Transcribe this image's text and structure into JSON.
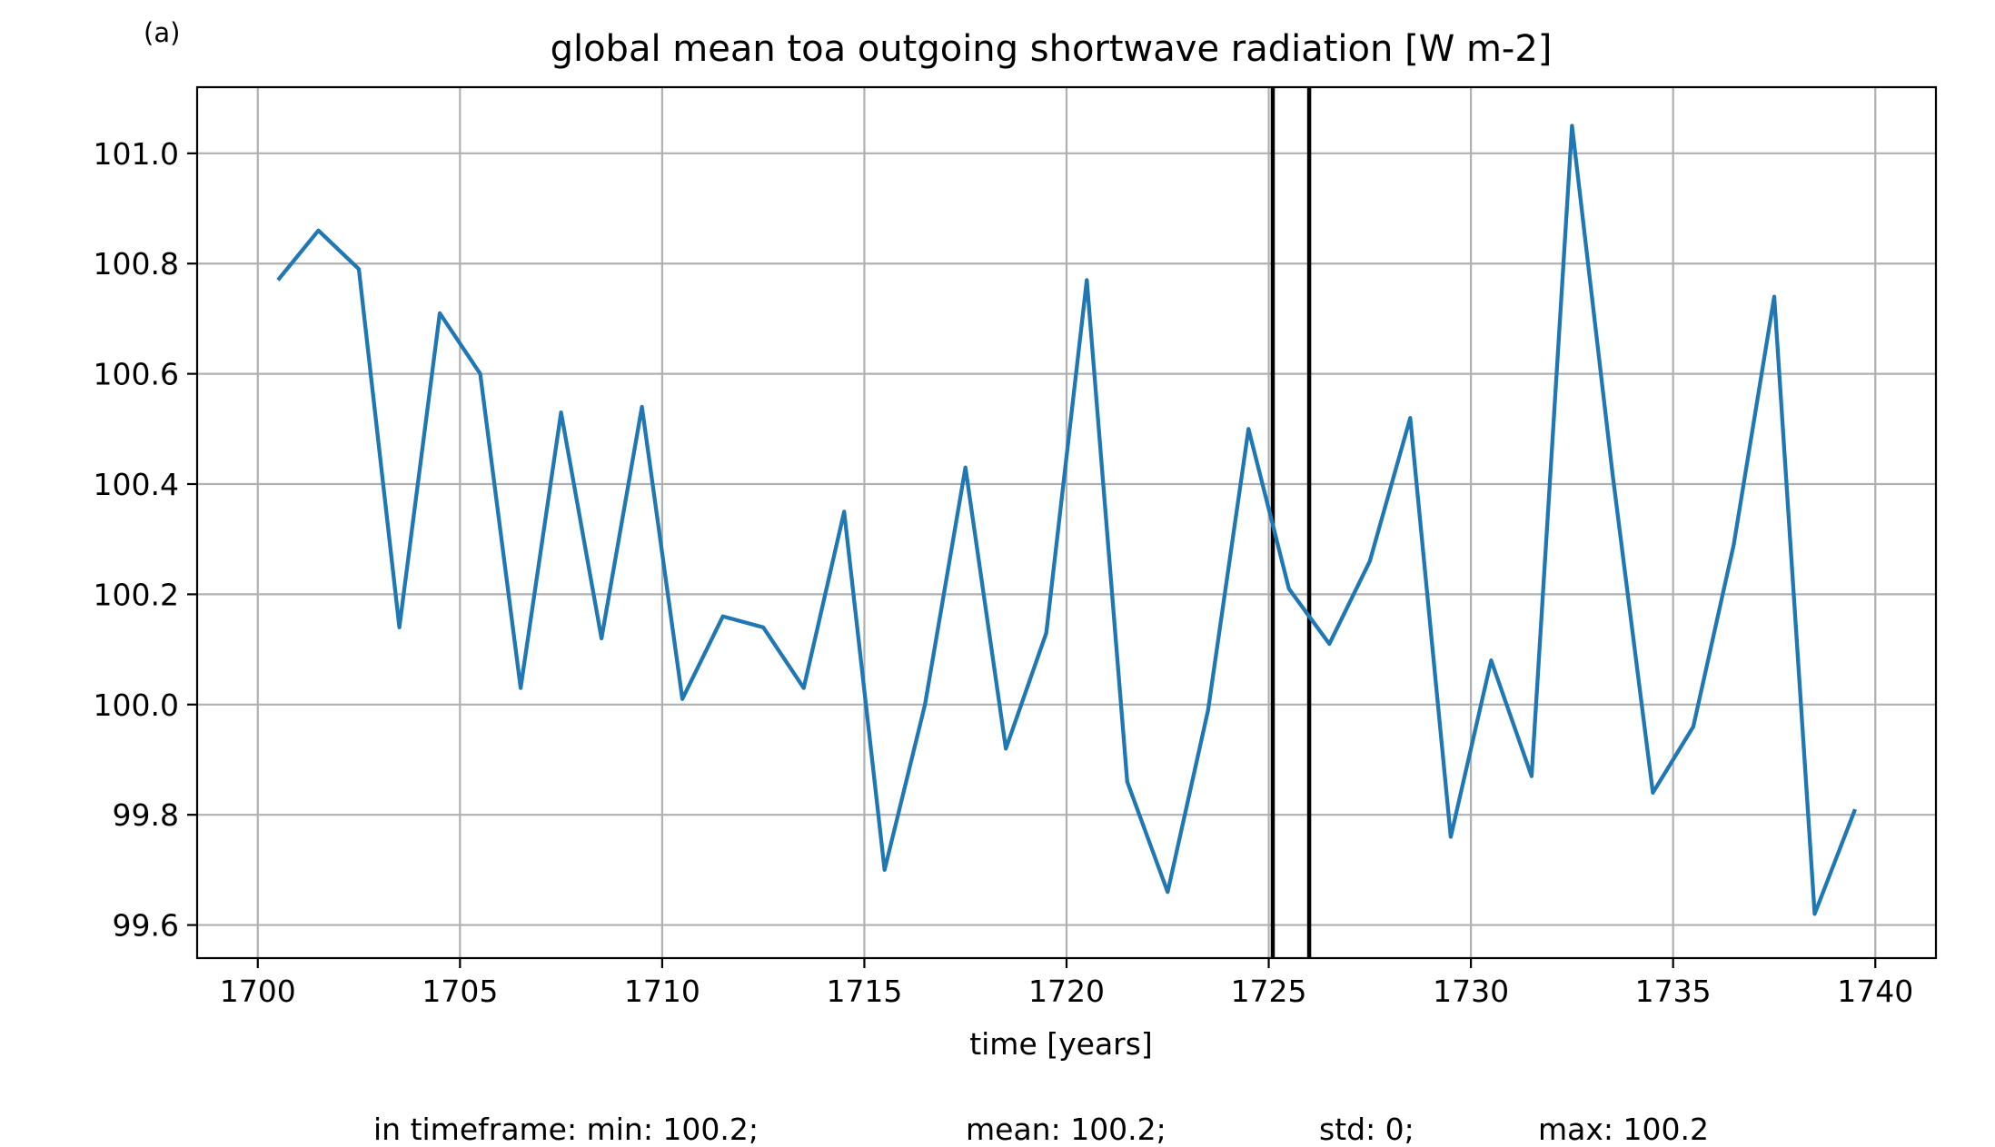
{
  "panel_label": "(a)",
  "stats": {
    "min": "in timeframe: min: 100.2;",
    "mean": "mean: 100.2;",
    "std": "std: 0;",
    "max": "max: 100.2"
  },
  "colors": {
    "series": "#1f77b4",
    "grid": "#b0b0b0",
    "axis": "#000000",
    "marker_lines": "#000000"
  },
  "chart_data": {
    "type": "line",
    "title": "global mean toa outgoing shortwave radiation [W m-2]",
    "xlabel": "time [years]",
    "ylabel": "",
    "xlim": [
      1698.5,
      1741.5
    ],
    "ylim": [
      99.54,
      101.12
    ],
    "xticks": [
      1700,
      1705,
      1710,
      1715,
      1720,
      1725,
      1730,
      1735,
      1740
    ],
    "yticks": [
      99.6,
      99.8,
      100.0,
      100.2,
      100.4,
      100.6,
      100.8,
      101.0
    ],
    "grid": true,
    "vertical_lines": [
      1725.1,
      1726.0
    ],
    "series": [
      {
        "x": [
          1700.5,
          1701.5,
          1702.5,
          1703.5,
          1704.5,
          1705.5,
          1706.5,
          1707.5,
          1708.5,
          1709.5,
          1710.5,
          1711.5,
          1712.5,
          1713.5,
          1714.5,
          1715.5,
          1716.5,
          1717.5,
          1718.5,
          1719.5,
          1720.5,
          1721.5,
          1722.5,
          1723.5,
          1724.5,
          1725.5,
          1726.5,
          1727.5,
          1728.5,
          1729.5,
          1730.5,
          1731.5,
          1732.5,
          1733.5,
          1734.5,
          1735.5,
          1736.5,
          1737.5,
          1738.5,
          1739.5
        ],
        "values": [
          100.77,
          100.86,
          100.79,
          100.14,
          100.71,
          100.6,
          100.03,
          100.53,
          100.12,
          100.54,
          100.01,
          100.16,
          100.14,
          100.03,
          100.35,
          99.7,
          100.0,
          100.43,
          99.92,
          100.13,
          100.77,
          99.86,
          99.66,
          99.99,
          100.5,
          100.21,
          100.11,
          100.26,
          100.52,
          99.76,
          100.08,
          99.87,
          101.05,
          100.42,
          99.84,
          99.96,
          100.29,
          100.74,
          99.62,
          99.81
        ]
      }
    ]
  }
}
